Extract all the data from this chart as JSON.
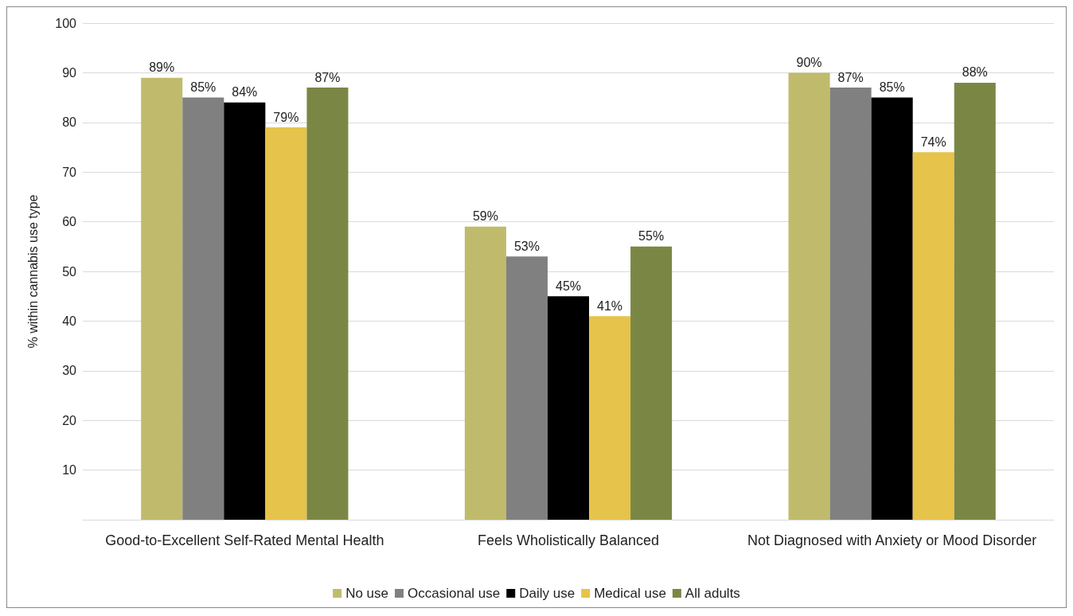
{
  "chart_data": {
    "type": "bar",
    "ylabel": "% within cannabis use type",
    "categories": [
      "Good-to-Excellent Self-Rated Mental Health",
      "Feels Wholistically Balanced",
      "Not Diagnosed with Anxiety or Mood Disorder"
    ],
    "series": [
      {
        "name": "No use",
        "color": "#c0bb6c",
        "values": [
          89,
          59,
          90
        ],
        "value_labels": [
          "89%",
          "59%",
          "90%"
        ]
      },
      {
        "name": "Occasional use",
        "color": "#808080",
        "values": [
          85,
          53,
          87
        ],
        "value_labels": [
          "85%",
          "53%",
          "87%"
        ]
      },
      {
        "name": "Daily use",
        "color": "#000000",
        "values": [
          84,
          45,
          85
        ],
        "value_labels": [
          "84%",
          "45%",
          "85%"
        ]
      },
      {
        "name": "Medical use",
        "color": "#e6c34a",
        "values": [
          79,
          41,
          74
        ],
        "value_labels": [
          "79%",
          "41%",
          "74%"
        ]
      },
      {
        "name": "All adults",
        "color": "#7a8744",
        "values": [
          87,
          55,
          88
        ],
        "value_labels": [
          "87%",
          "55%",
          "88%"
        ]
      }
    ],
    "ylim": [
      0,
      100
    ],
    "yticks": [
      {
        "value": 0,
        "label": null
      },
      10,
      20,
      30,
      40,
      50,
      60,
      70,
      80,
      90,
      100
    ],
    "grid": "y",
    "legend": "bottom"
  }
}
